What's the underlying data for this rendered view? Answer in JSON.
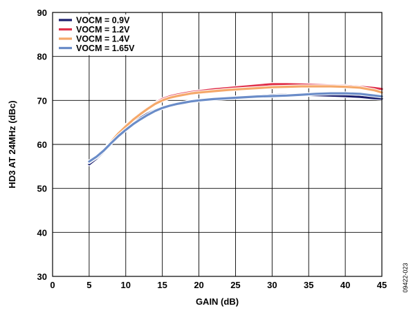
{
  "figure_id": "09422-023",
  "chart_data": {
    "type": "line",
    "xlabel": "GAIN (dB)",
    "ylabel": "HD3 AT 24MHz (dBc)",
    "xlim": [
      0,
      45
    ],
    "ylim": [
      30,
      90
    ],
    "x_ticks": [
      0,
      5,
      10,
      15,
      20,
      25,
      30,
      35,
      40,
      45
    ],
    "y_ticks": [
      30,
      40,
      50,
      60,
      70,
      80,
      90
    ],
    "grid": true,
    "legend_position": "top-left",
    "series": [
      {
        "name": "VOCM = 0.9V",
        "color": "#1b1f6e",
        "x": [
          5,
          6,
          7,
          8,
          9,
          10,
          11,
          12,
          13,
          14,
          15,
          16,
          17,
          18,
          19,
          20,
          22,
          24,
          26,
          28,
          30,
          32,
          34,
          36,
          38,
          40,
          42,
          44,
          45
        ],
        "y": [
          55.5,
          56.8,
          58.4,
          60.3,
          62.0,
          63.6,
          64.9,
          66.0,
          67.0,
          67.8,
          68.4,
          68.9,
          69.2,
          69.5,
          69.8,
          70.0,
          70.3,
          70.6,
          70.8,
          71.0,
          71.2,
          71.3,
          71.3,
          71.2,
          71.1,
          71.0,
          70.8,
          70.5,
          70.4
        ]
      },
      {
        "name": "VOCM = 1.2V",
        "color": "#e0304a",
        "x": [
          5,
          6,
          7,
          8,
          9,
          10,
          11,
          12,
          13,
          14,
          15,
          16,
          17,
          18,
          19,
          20,
          22,
          24,
          26,
          28,
          30,
          32,
          34,
          36,
          38,
          40,
          42,
          44,
          45
        ],
        "y": [
          56.0,
          57.2,
          58.8,
          60.7,
          62.6,
          64.3,
          65.8,
          67.1,
          68.3,
          69.4,
          70.3,
          70.9,
          71.3,
          71.6,
          71.9,
          72.1,
          72.5,
          72.8,
          73.1,
          73.4,
          73.7,
          73.7,
          73.6,
          73.5,
          73.4,
          73.3,
          73.1,
          72.8,
          72.6
        ]
      },
      {
        "name": "VOCM = 1.4V",
        "color": "#f5a86a",
        "x": [
          5,
          6,
          7,
          8,
          9,
          10,
          11,
          12,
          13,
          14,
          15,
          16,
          17,
          18,
          19,
          20,
          22,
          24,
          26,
          28,
          30,
          32,
          34,
          36,
          38,
          40,
          42,
          44,
          45
        ],
        "y": [
          56.0,
          57.1,
          58.7,
          60.6,
          62.5,
          64.1,
          65.6,
          66.9,
          68.1,
          69.2,
          70.0,
          70.6,
          71.0,
          71.3,
          71.6,
          71.8,
          72.1,
          72.4,
          72.6,
          72.8,
          73.0,
          73.1,
          73.2,
          73.2,
          73.2,
          73.1,
          72.9,
          72.3,
          71.8
        ]
      },
      {
        "name": "VOCM = 1.65V",
        "color": "#6a8cc8",
        "x": [
          5,
          6,
          7,
          8,
          9,
          10,
          11,
          12,
          13,
          14,
          15,
          16,
          17,
          18,
          19,
          20,
          22,
          24,
          26,
          28,
          30,
          32,
          34,
          36,
          38,
          40,
          42,
          44,
          45
        ],
        "y": [
          56.1,
          57.2,
          58.6,
          60.3,
          61.9,
          63.3,
          64.6,
          65.7,
          66.7,
          67.6,
          68.3,
          68.8,
          69.2,
          69.5,
          69.8,
          70.0,
          70.3,
          70.5,
          70.7,
          70.9,
          71.0,
          71.1,
          71.3,
          71.5,
          71.6,
          71.6,
          71.5,
          71.1,
          70.9
        ]
      }
    ]
  }
}
